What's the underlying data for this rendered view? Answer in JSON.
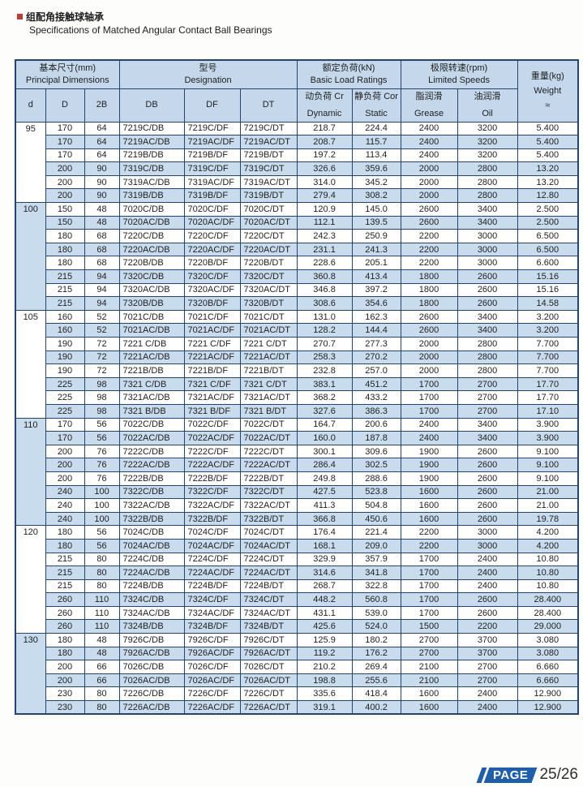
{
  "page": {
    "title_zh": "组配角接触球轴承",
    "title_en": "Specifications of Matched Angular Contact Ball Bearings",
    "footer": {
      "page_label": "PAGE",
      "page_number": "25/26"
    }
  },
  "colors": {
    "row_blue": "#c9dcee",
    "header_blue": "#c5d8eb",
    "table_border_navy": "#24466e",
    "badge_blue": "#1d5fad",
    "title_bullet_red": "#c23b2e"
  },
  "table": {
    "header": {
      "principal_zh": "基本尺寸(mm)",
      "principal_en": "Principal Dimensions",
      "designation_zh": "型号",
      "designation_en": "Designation",
      "load_zh": "额定负荷(kN)",
      "load_en": "Basic Load Ratings",
      "speed_zh": "极限转速(rpm)",
      "speed_en": "Limited Speeds",
      "weight_zh": "重量(kg)",
      "weight_en": "Weight",
      "weight_approx": "≈",
      "col_d": "d",
      "col_D": "D",
      "col_2B": "2B",
      "col_DB": "DB",
      "col_DF": "DF",
      "col_DT": "DT",
      "dynamic_zh": "动负荷 Cr",
      "dynamic_en": "Dynamic",
      "static_zh": "静负荷 Cor",
      "static_en": "Static",
      "grease_zh": "脂润滑",
      "grease_en": "Grease",
      "oil_zh": "油润滑",
      "oil_en": "Oil"
    },
    "groups": [
      {
        "d": "95",
        "rows": [
          [
            "170",
            "64",
            "7219C/DB",
            "7219C/DF",
            "7219C/DT",
            "218.7",
            "224.4",
            "2400",
            "3200",
            "5.400"
          ],
          [
            "170",
            "64",
            "7219AC/DB",
            "7219AC/DF",
            "7219AC/DT",
            "208.7",
            "115.7",
            "2400",
            "3200",
            "5.400"
          ],
          [
            "170",
            "64",
            "7219B/DB",
            "7219B/DF",
            "7219B/DT",
            "197.2",
            "113.4",
            "2400",
            "3200",
            "5.400"
          ],
          [
            "200",
            "90",
            "7319C/DB",
            "7319C/DF",
            "7319C/DT",
            "326.6",
            "359.6",
            "2000",
            "2800",
            "13.20"
          ],
          [
            "200",
            "90",
            "7319AC/DB",
            "7319AC/DF",
            "7319AC/DT",
            "314.0",
            "345.2",
            "2000",
            "2800",
            "13.20"
          ],
          [
            "200",
            "90",
            "7319B/DB",
            "7319B/DF",
            "7319B/DT",
            "279.4",
            "308.2",
            "2000",
            "2800",
            "12.80"
          ]
        ]
      },
      {
        "d": "100",
        "rows": [
          [
            "150",
            "48",
            "7020C/DB",
            "7020C/DF",
            "7020C/DT",
            "120.9",
            "145.0",
            "2600",
            "3400",
            "2.500"
          ],
          [
            "150",
            "48",
            "7020AC/DB",
            "7020AC/DF",
            "7020AC/DT",
            "112.1",
            "139.5",
            "2600",
            "3400",
            "2.500"
          ],
          [
            "180",
            "68",
            "7220C/DB",
            "7220C/DF",
            "7220C/DT",
            "242.3",
            "250.9",
            "2200",
            "3000",
            "6.500"
          ],
          [
            "180",
            "68",
            "7220AC/DB",
            "7220AC/DF",
            "7220AC/DT",
            "231.1",
            "241.3",
            "2200",
            "3000",
            "6.500"
          ],
          [
            "180",
            "68",
            "7220B/DB",
            "7220B/DF",
            "7220B/DT",
            "228.6",
            "205.1",
            "2200",
            "3000",
            "6.600"
          ],
          [
            "215",
            "94",
            "7320C/DB",
            "7320C/DF",
            "7320C/DT",
            "360.8",
            "413.4",
            "1800",
            "2600",
            "15.16"
          ],
          [
            "215",
            "94",
            "7320AC/DB",
            "7320AC/DF",
            "7320AC/DT",
            "346.8",
            "397.2",
            "1800",
            "2600",
            "15.16"
          ],
          [
            "215",
            "94",
            "7320B/DB",
            "7320B/DF",
            "7320B/DT",
            "308.6",
            "354.6",
            "1800",
            "2600",
            "14.58"
          ]
        ]
      },
      {
        "d": "105",
        "rows": [
          [
            "160",
            "52",
            "7021C/DB",
            "7021C/DF",
            "7021C/DT",
            "131.0",
            "162.3",
            "2600",
            "3400",
            "3.200"
          ],
          [
            "160",
            "52",
            "7021AC/DB",
            "7021AC/DF",
            "7021AC/DT",
            "128.2",
            "144.4",
            "2600",
            "3400",
            "3.200"
          ],
          [
            "190",
            "72",
            "7221 C/DB",
            "7221 C/DF",
            "7221 C/DT",
            "270.7",
            "277.3",
            "2000",
            "2800",
            "7.700"
          ],
          [
            "190",
            "72",
            "7221AC/DB",
            "7221AC/DF",
            "7221AC/DT",
            "258.3",
            "270.2",
            "2000",
            "2800",
            "7.700"
          ],
          [
            "190",
            "72",
            "7221B/DB",
            "7221B/DF",
            "7221B/DT",
            "232.8",
            "257.0",
            "2000",
            "2800",
            "7.700"
          ],
          [
            "225",
            "98",
            "7321 C/DB",
            "7321 C/DF",
            "7321 C/DT",
            "383.1",
            "451.2",
            "1700",
            "2700",
            "17.70"
          ],
          [
            "225",
            "98",
            "7321AC/DB",
            "7321AC/DF",
            "7321AC/DT",
            "368.2",
            "433.2",
            "1700",
            "2700",
            "17.70"
          ],
          [
            "225",
            "98",
            "7321 B/DB",
            "7321 B/DF",
            "7321 B/DT",
            "327.6",
            "386.3",
            "1700",
            "2700",
            "17.10"
          ]
        ]
      },
      {
        "d": "110",
        "rows": [
          [
            "170",
            "56",
            "7022C/DB",
            "7022C/DF",
            "7022C/DT",
            "164.7",
            "200.6",
            "2400",
            "3400",
            "3.900"
          ],
          [
            "170",
            "56",
            "7022AC/DB",
            "7022AC/DF",
            "7022AC/DT",
            "160.0",
            "187.8",
            "2400",
            "3400",
            "3.900"
          ],
          [
            "200",
            "76",
            "7222C/DB",
            "7222C/DF",
            "7222C/DT",
            "300.1",
            "309.6",
            "1900",
            "2600",
            "9.100"
          ],
          [
            "200",
            "76",
            "7222AC/DB",
            "7222AC/DF",
            "7222AC/DT",
            "286.4",
            "302.5",
            "1900",
            "2600",
            "9.100"
          ],
          [
            "200",
            "76",
            "7222B/DB",
            "7222B/DF",
            "7222B/DT",
            "249.8",
            "288.6",
            "1900",
            "2600",
            "9.100"
          ],
          [
            "240",
            "100",
            "7322C/DB",
            "7322C/DF",
            "7322C/DT",
            "427.5",
            "523.8",
            "1600",
            "2600",
            "21.00"
          ],
          [
            "240",
            "100",
            "7322AC/DB",
            "7322AC/DF",
            "7322AC/DT",
            "411.3",
            "504.8",
            "1600",
            "2600",
            "21.00"
          ],
          [
            "240",
            "100",
            "7322B/DB",
            "7322B/DF",
            "7322B/DT",
            "366.8",
            "450.6",
            "1600",
            "2600",
            "19.78"
          ]
        ]
      },
      {
        "d": "120",
        "rows": [
          [
            "180",
            "56",
            "7024C/DB",
            "7024C/DF",
            "7024C/DT",
            "176.4",
            "221.4",
            "2200",
            "3000",
            "4.200"
          ],
          [
            "180",
            "56",
            "7024AC/DB",
            "7024AC/DF",
            "7024AC/DT",
            "168.1",
            "209.0",
            "2200",
            "3000",
            "4.200"
          ],
          [
            "215",
            "80",
            "7224C/DB",
            "7224C/DF",
            "7224C/DT",
            "329.9",
            "357.9",
            "1700",
            "2400",
            "10.80"
          ],
          [
            "215",
            "80",
            "7224AC/DB",
            "7224AC/DF",
            "7224AC/DT",
            "314.6",
            "341.8",
            "1700",
            "2400",
            "10.80"
          ],
          [
            "215",
            "80",
            "7224B/DB",
            "7224B/DF",
            "7224B/DT",
            "268.7",
            "322.8",
            "1700",
            "2400",
            "10.80"
          ],
          [
            "260",
            "110",
            "7324C/DB",
            "7324C/DF",
            "7324C/DT",
            "448.2",
            "560.8",
            "1700",
            "2600",
            "28.400"
          ],
          [
            "260",
            "110",
            "7324AC/DB",
            "7324AC/DF",
            "7324AC/DT",
            "431.1",
            "539.0",
            "1700",
            "2600",
            "28.400"
          ],
          [
            "260",
            "110",
            "7324B/DB",
            "7324B/DF",
            "7324B/DT",
            "425.6",
            "524.0",
            "1500",
            "2200",
            "29.000"
          ]
        ]
      },
      {
        "d": "130",
        "rows": [
          [
            "180",
            "48",
            "7926C/DB",
            "7926C/DF",
            "7926C/DT",
            "125.9",
            "180.2",
            "2700",
            "3700",
            "3.080"
          ],
          [
            "180",
            "48",
            "7926AC/DB",
            "7926AC/DF",
            "7926AC/DT",
            "119.2",
            "176.2",
            "2700",
            "3700",
            "3.080"
          ],
          [
            "200",
            "66",
            "7026C/DB",
            "7026C/DF",
            "7026C/DT",
            "210.2",
            "269.4",
            "2100",
            "2700",
            "6.660"
          ],
          [
            "200",
            "66",
            "7026AC/DB",
            "7026AC/DF",
            "7026AC/DT",
            "198.8",
            "255.6",
            "2100",
            "2700",
            "6.660"
          ],
          [
            "230",
            "80",
            "7226C/DB",
            "7226C/DF",
            "7226C/DT",
            "335.6",
            "418.4",
            "1600",
            "2400",
            "12.900"
          ],
          [
            "230",
            "80",
            "7226AC/DB",
            "7226AC/DF",
            "7226AC/DT",
            "319.1",
            "400.2",
            "1600",
            "2400",
            "12.900"
          ]
        ]
      }
    ]
  }
}
